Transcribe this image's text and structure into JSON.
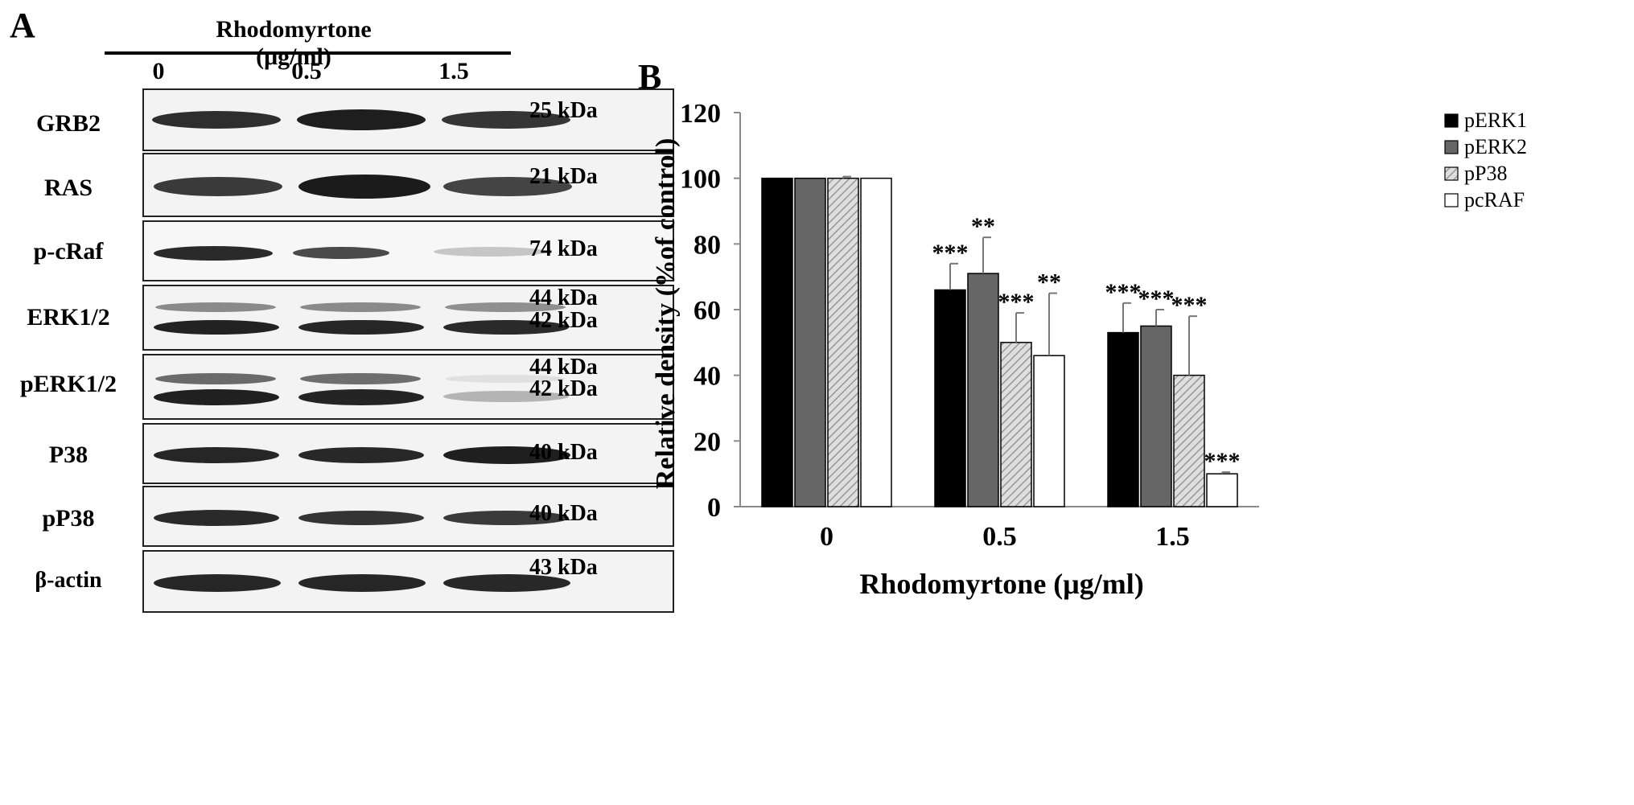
{
  "panelA": {
    "letter": "A",
    "treatment_label": "Rhodomyrtone (μg/ml)",
    "lanes": [
      "0",
      "0.5",
      "1.5"
    ],
    "blots": [
      {
        "protein": "GRB2",
        "kda": [
          "25 kDa"
        ]
      },
      {
        "protein": "RAS",
        "kda": [
          "21 kDa"
        ]
      },
      {
        "protein": "p-cRaf",
        "kda": [
          "74 kDa"
        ]
      },
      {
        "protein": "ERK1/2",
        "kda": [
          "44 kDa",
          "42 kDa"
        ]
      },
      {
        "protein": "pERK1/2",
        "kda": [
          "44 kDa",
          "42 kDa"
        ]
      },
      {
        "protein": "P38",
        "kda": [
          "40 kDa"
        ]
      },
      {
        "protein": "pP38",
        "kda": [
          "40 kDa"
        ]
      },
      {
        "protein": "β-actin",
        "kda": [
          "43 kDa"
        ]
      }
    ]
  },
  "panelB": {
    "letter": "B"
  },
  "chart_data": {
    "type": "bar",
    "title": "",
    "xlabel": "Rhodomyrtone (μg/ml)",
    "ylabel": "Relative density (%of control)",
    "ylim": [
      0,
      120
    ],
    "yticks": [
      0,
      20,
      40,
      60,
      80,
      100,
      120
    ],
    "categories": [
      "0",
      "0.5",
      "1.5"
    ],
    "legend_position": "top-right",
    "series": [
      {
        "name": "pERK1",
        "values": [
          100,
          66,
          53
        ],
        "errors": [
          0,
          8,
          9
        ],
        "significance": [
          "",
          "***",
          "***"
        ],
        "color": "#000000",
        "pattern": "solid"
      },
      {
        "name": "pERK2",
        "values": [
          100,
          71,
          55
        ],
        "errors": [
          0,
          11,
          5
        ],
        "significance": [
          "",
          "**",
          "***"
        ],
        "color": "#666666",
        "pattern": "solid"
      },
      {
        "name": "pP38",
        "values": [
          100,
          50,
          40
        ],
        "errors": [
          0.5,
          9,
          18
        ],
        "significance": [
          "",
          "***",
          "***"
        ],
        "color": "#d0d0d0",
        "pattern": "hatched"
      },
      {
        "name": "pcRAF",
        "values": [
          100,
          46,
          10
        ],
        "errors": [
          0,
          19,
          0.5
        ],
        "significance": [
          "",
          "**",
          "***"
        ],
        "color": "#ffffff",
        "pattern": "solid"
      }
    ]
  }
}
